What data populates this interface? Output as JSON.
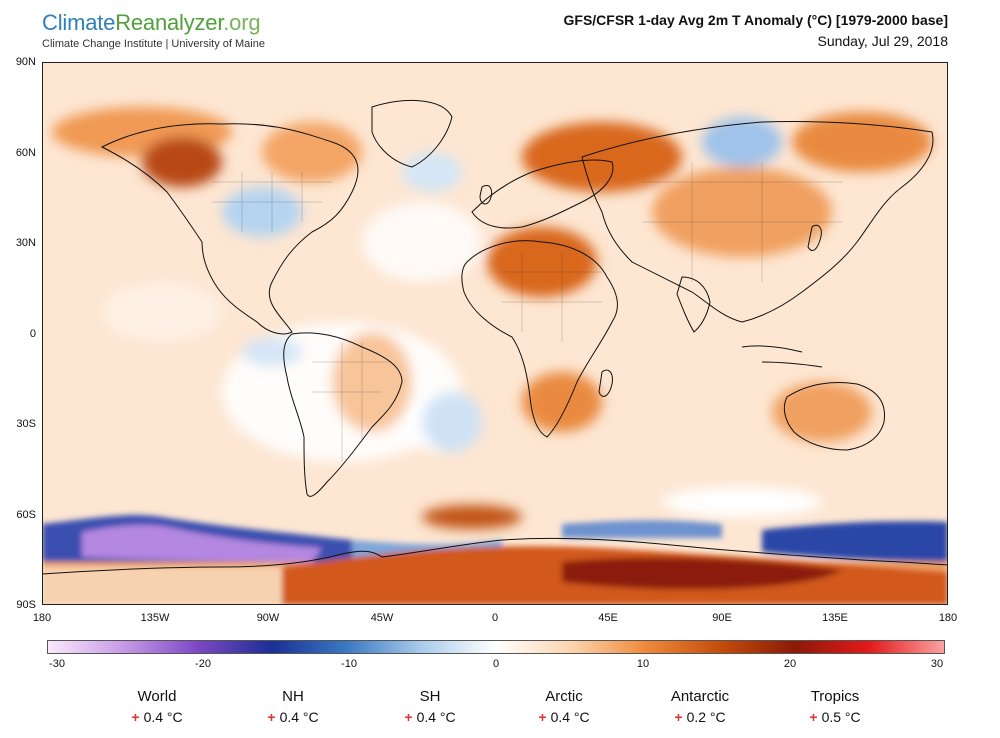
{
  "header": {
    "logo_climate": "Climate",
    "logo_reanalyzer": "Reanalyzer",
    "logo_org": ".org",
    "institute": "Climate Change Institute | University of Maine",
    "title": "GFS/CFSR 1-day Avg 2m T Anomaly (°C) [1979-2000 base]",
    "date": "Sunday, Jul 29, 2018"
  },
  "map": {
    "lat_labels": [
      "90N",
      "60N",
      "30N",
      "0",
      "30S",
      "60S",
      "90S"
    ],
    "lon_labels": [
      "180",
      "135W",
      "90W",
      "45W",
      "0",
      "45E",
      "90E",
      "135E",
      "180"
    ]
  },
  "colorbar": {
    "ticks": [
      "-30",
      "-20",
      "-10",
      "0",
      "10",
      "20",
      "30"
    ],
    "range": [
      -30,
      30
    ],
    "colors": [
      "#fbe8fb",
      "#c89be8",
      "#7e47c6",
      "#1b2f96",
      "#3b79c2",
      "#a9cbeb",
      "#ffffff",
      "#fcd5b0",
      "#ef8a3a",
      "#c44d0c",
      "#8b1a07",
      "#e31a1a",
      "#fba2a2"
    ]
  },
  "stats": [
    {
      "name": "World",
      "sign": "+",
      "value": "0.4 °C"
    },
    {
      "name": "NH",
      "sign": "+",
      "value": "0.4 °C"
    },
    {
      "name": "SH",
      "sign": "+",
      "value": "0.4 °C"
    },
    {
      "name": "Arctic",
      "sign": "+",
      "value": "0.4 °C"
    },
    {
      "name": "Antarctic",
      "sign": "+",
      "value": "0.2 °C"
    },
    {
      "name": "Tropics",
      "sign": "+",
      "value": "0.5 °C"
    }
  ]
}
